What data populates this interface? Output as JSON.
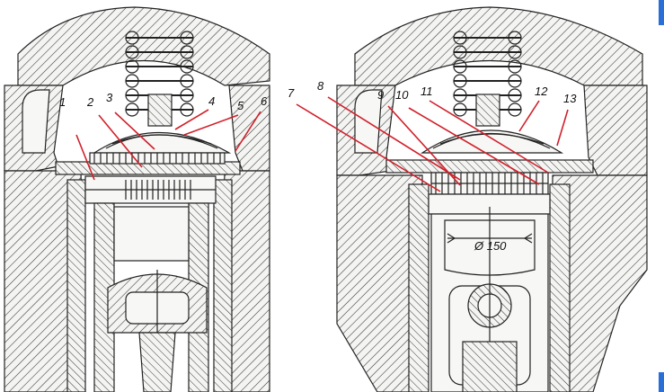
{
  "labels": {
    "l1": "1",
    "l2": "2",
    "l3": "3",
    "l4": "4",
    "l5": "5",
    "l6": "6",
    "l7": "7",
    "l8": "8",
    "l9": "9",
    "l10": "10",
    "l11": "11",
    "l12": "12",
    "l13": "13"
  },
  "dimension": "Ø 150",
  "colors": {
    "leader": "#d0202a",
    "accent": "#2a6fd6",
    "ink": "#222222"
  }
}
